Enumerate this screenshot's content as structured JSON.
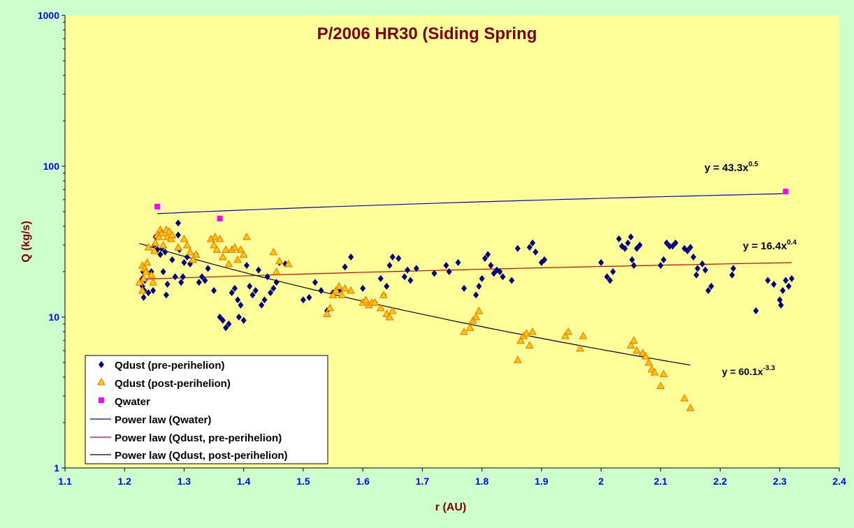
{
  "chart_data": {
    "type": "scatter",
    "title": "P/2006 HR30 (Siding Spring",
    "xlabel": "r (AU)",
    "ylabel": "Q (kg/s)",
    "xlim": [
      1.1,
      2.4
    ],
    "ylim": [
      1,
      1000
    ],
    "yscale": "log",
    "grid": false,
    "legend_position": "bottom-left",
    "x_ticks": [
      "1.1",
      "1.2",
      "1.3",
      "1.4",
      "1.5",
      "1.6",
      "1.7",
      "1.8",
      "1.9",
      "2",
      "2.1",
      "2.2",
      "2.3",
      "2.4"
    ],
    "y_ticks": [
      "1",
      "10",
      "100",
      "1000"
    ],
    "colors": {
      "plot_background": "#ffff99",
      "page_background": "#ccffcc",
      "title": "#800000",
      "axis_title": "#800000",
      "tick_labels": "#0000ff",
      "pre": "#000080",
      "post_fill": "#ffcc00",
      "post_edge": "#ff6600",
      "water": "#ff00ff",
      "fit_water": "#0000cc",
      "fit_pre": "#cc0000",
      "fit_post": "#000000"
    },
    "series": [
      {
        "name": "Qdust (pre-perihelion)",
        "marker": "diamond",
        "points": [
          [
            1.23,
            18
          ],
          [
            1.23,
            16
          ],
          [
            1.231,
            20
          ],
          [
            1.232,
            13.5
          ],
          [
            1.233,
            15
          ],
          [
            1.234,
            17.5
          ],
          [
            1.24,
            14.5
          ],
          [
            1.245,
            20
          ],
          [
            1.248,
            15
          ],
          [
            1.25,
            30
          ],
          [
            1.252,
            34
          ],
          [
            1.255,
            28
          ],
          [
            1.26,
            26
          ],
          [
            1.262,
            28.5
          ],
          [
            1.265,
            20
          ],
          [
            1.268,
            27
          ],
          [
            1.27,
            14
          ],
          [
            1.272,
            16.5
          ],
          [
            1.28,
            24
          ],
          [
            1.285,
            18.5
          ],
          [
            1.29,
            42
          ],
          [
            1.29,
            35
          ],
          [
            1.292,
            28
          ],
          [
            1.295,
            17
          ],
          [
            1.298,
            18.5
          ],
          [
            1.3,
            23
          ],
          [
            1.305,
            25
          ],
          [
            1.31,
            22.5
          ],
          [
            1.32,
            26
          ],
          [
            1.325,
            17
          ],
          [
            1.33,
            18.5
          ],
          [
            1.335,
            17.5
          ],
          [
            1.34,
            21
          ],
          [
            1.35,
            15
          ],
          [
            1.36,
            10
          ],
          [
            1.365,
            9.5
          ],
          [
            1.37,
            8.5
          ],
          [
            1.375,
            9
          ],
          [
            1.38,
            14.5
          ],
          [
            1.385,
            15.5
          ],
          [
            1.39,
            13
          ],
          [
            1.392,
            10
          ],
          [
            1.395,
            12
          ],
          [
            1.4,
            9.5
          ],
          [
            1.405,
            22
          ],
          [
            1.41,
            16
          ],
          [
            1.415,
            14
          ],
          [
            1.42,
            15
          ],
          [
            1.425,
            20.5
          ],
          [
            1.43,
            12
          ],
          [
            1.435,
            13
          ],
          [
            1.44,
            18.5
          ],
          [
            1.445,
            14.5
          ],
          [
            1.45,
            15.5
          ],
          [
            1.455,
            17
          ],
          [
            1.46,
            23
          ],
          [
            1.47,
            22.5
          ],
          [
            1.5,
            13
          ],
          [
            1.51,
            13.5
          ],
          [
            1.52,
            17
          ],
          [
            1.53,
            15
          ],
          [
            1.54,
            11
          ],
          [
            1.55,
            14.5
          ],
          [
            1.56,
            15
          ],
          [
            1.57,
            21.5
          ],
          [
            1.58,
            25
          ],
          [
            1.6,
            15.5
          ],
          [
            1.62,
            12.5
          ],
          [
            1.63,
            18
          ],
          [
            1.635,
            14
          ],
          [
            1.64,
            16
          ],
          [
            1.645,
            22
          ],
          [
            1.65,
            25
          ],
          [
            1.66,
            24.5
          ],
          [
            1.67,
            18.5
          ],
          [
            1.675,
            20.5
          ],
          [
            1.68,
            17.5
          ],
          [
            1.69,
            21
          ],
          [
            1.72,
            19.5
          ],
          [
            1.74,
            22
          ],
          [
            1.745,
            20
          ],
          [
            1.76,
            23
          ],
          [
            1.77,
            15.5
          ],
          [
            1.79,
            14
          ],
          [
            1.795,
            16
          ],
          [
            1.8,
            18
          ],
          [
            1.805,
            24.5
          ],
          [
            1.81,
            26
          ],
          [
            1.815,
            22
          ],
          [
            1.82,
            19.5
          ],
          [
            1.825,
            20.5
          ],
          [
            1.83,
            20
          ],
          [
            1.835,
            18.5
          ],
          [
            1.85,
            17.5
          ],
          [
            1.86,
            28.5
          ],
          [
            1.88,
            29
          ],
          [
            1.885,
            31
          ],
          [
            1.89,
            27
          ],
          [
            1.9,
            23
          ],
          [
            1.905,
            24
          ],
          [
            2.0,
            23
          ],
          [
            2.01,
            18.5
          ],
          [
            2.015,
            17.5
          ],
          [
            2.02,
            20
          ],
          [
            2.03,
            33
          ],
          [
            2.035,
            29.5
          ],
          [
            2.04,
            28.5
          ],
          [
            2.045,
            31
          ],
          [
            2.05,
            34
          ],
          [
            2.052,
            24
          ],
          [
            2.055,
            22
          ],
          [
            2.06,
            28.5
          ],
          [
            2.065,
            30
          ],
          [
            2.1,
            22
          ],
          [
            2.105,
            24
          ],
          [
            2.11,
            31
          ],
          [
            2.115,
            29.5
          ],
          [
            2.12,
            29.5
          ],
          [
            2.125,
            31
          ],
          [
            2.14,
            28.5
          ],
          [
            2.145,
            27.5
          ],
          [
            2.15,
            29
          ],
          [
            2.155,
            25
          ],
          [
            2.16,
            19
          ],
          [
            2.162,
            21
          ],
          [
            2.17,
            22.5
          ],
          [
            2.175,
            20.5
          ],
          [
            2.18,
            15
          ],
          [
            2.185,
            16
          ],
          [
            2.22,
            19
          ],
          [
            2.222,
            21
          ],
          [
            2.26,
            11
          ],
          [
            2.28,
            17.5
          ],
          [
            2.29,
            16.5
          ],
          [
            2.3,
            13
          ],
          [
            2.302,
            12
          ],
          [
            2.305,
            15
          ],
          [
            2.31,
            17.5
          ],
          [
            2.315,
            16
          ],
          [
            2.32,
            18
          ]
        ]
      },
      {
        "name": "Qdust (post-perihelion)",
        "marker": "triangle",
        "points": [
          [
            1.225,
            17
          ],
          [
            1.23,
            15
          ],
          [
            1.23,
            22
          ],
          [
            1.232,
            18
          ],
          [
            1.234,
            21
          ],
          [
            1.236,
            20
          ],
          [
            1.238,
            23
          ],
          [
            1.24,
            29
          ],
          [
            1.245,
            19
          ],
          [
            1.248,
            17
          ],
          [
            1.25,
            27.5
          ],
          [
            1.252,
            31
          ],
          [
            1.255,
            35
          ],
          [
            1.258,
            34
          ],
          [
            1.26,
            38
          ],
          [
            1.262,
            36
          ],
          [
            1.265,
            30
          ],
          [
            1.27,
            38
          ],
          [
            1.272,
            34
          ],
          [
            1.275,
            37
          ],
          [
            1.278,
            33
          ],
          [
            1.28,
            35
          ],
          [
            1.29,
            29
          ],
          [
            1.3,
            33
          ],
          [
            1.305,
            30
          ],
          [
            1.31,
            27
          ],
          [
            1.315,
            24
          ],
          [
            1.32,
            26
          ],
          [
            1.345,
            33
          ],
          [
            1.35,
            30
          ],
          [
            1.352,
            34
          ],
          [
            1.355,
            28
          ],
          [
            1.36,
            33
          ],
          [
            1.365,
            25
          ],
          [
            1.37,
            28
          ],
          [
            1.375,
            22.5
          ],
          [
            1.38,
            28
          ],
          [
            1.385,
            29
          ],
          [
            1.39,
            24
          ],
          [
            1.395,
            28
          ],
          [
            1.4,
            26
          ],
          [
            1.405,
            34
          ],
          [
            1.45,
            27
          ],
          [
            1.455,
            20
          ],
          [
            1.46,
            23.5
          ],
          [
            1.475,
            22.5
          ],
          [
            1.54,
            10.5
          ],
          [
            1.545,
            11.5
          ],
          [
            1.55,
            14
          ],
          [
            1.555,
            15
          ],
          [
            1.56,
            16
          ],
          [
            1.565,
            14
          ],
          [
            1.57,
            15.5
          ],
          [
            1.58,
            15
          ],
          [
            1.6,
            12.5
          ],
          [
            1.605,
            13
          ],
          [
            1.61,
            12
          ],
          [
            1.615,
            12.5
          ],
          [
            1.62,
            12.5
          ],
          [
            1.63,
            11.5
          ],
          [
            1.635,
            14
          ],
          [
            1.64,
            10.5
          ],
          [
            1.645,
            10
          ],
          [
            1.65,
            11
          ],
          [
            1.77,
            8
          ],
          [
            1.78,
            8.5
          ],
          [
            1.785,
            9.5
          ],
          [
            1.79,
            10
          ],
          [
            1.795,
            11
          ],
          [
            1.86,
            5.2
          ],
          [
            1.865,
            7
          ],
          [
            1.87,
            7.5
          ],
          [
            1.875,
            7.8
          ],
          [
            1.88,
            6.5
          ],
          [
            1.885,
            8
          ],
          [
            1.94,
            7.5
          ],
          [
            1.945,
            8
          ],
          [
            1.965,
            6.2
          ],
          [
            1.97,
            7.5
          ],
          [
            2.05,
            6.5
          ],
          [
            2.055,
            7
          ],
          [
            2.06,
            6
          ],
          [
            2.07,
            5.8
          ],
          [
            2.075,
            5.5
          ],
          [
            2.08,
            5
          ],
          [
            2.085,
            4.5
          ],
          [
            2.09,
            4.3
          ],
          [
            2.1,
            3.5
          ],
          [
            2.105,
            4.2
          ],
          [
            2.14,
            2.9
          ],
          [
            2.15,
            2.5
          ]
        ]
      },
      {
        "name": "Qwater",
        "marker": "square",
        "points": [
          [
            1.255,
            54
          ],
          [
            1.36,
            45
          ],
          [
            2.31,
            68
          ]
        ]
      }
    ],
    "fits": [
      {
        "name": "Power law (Qwater)",
        "coef": 43.3,
        "exp": 0.5,
        "x_range": [
          1.255,
          2.31
        ],
        "label": "y = 43.3x",
        "label_exp": "0.5"
      },
      {
        "name": "Power law (Qdust, pre-perihelion)",
        "coef": 16.4,
        "exp": 0.4,
        "x_range": [
          1.225,
          2.32
        ],
        "label": "y = 16.4x",
        "label_exp": "0.4"
      },
      {
        "name": "Power law (Qdust, post-perihelion)",
        "coef": 60.1,
        "exp": -3.3,
        "x_range": [
          1.225,
          2.15
        ],
        "label": "y = 60.1x",
        "label_exp": "-3.3"
      }
    ]
  }
}
